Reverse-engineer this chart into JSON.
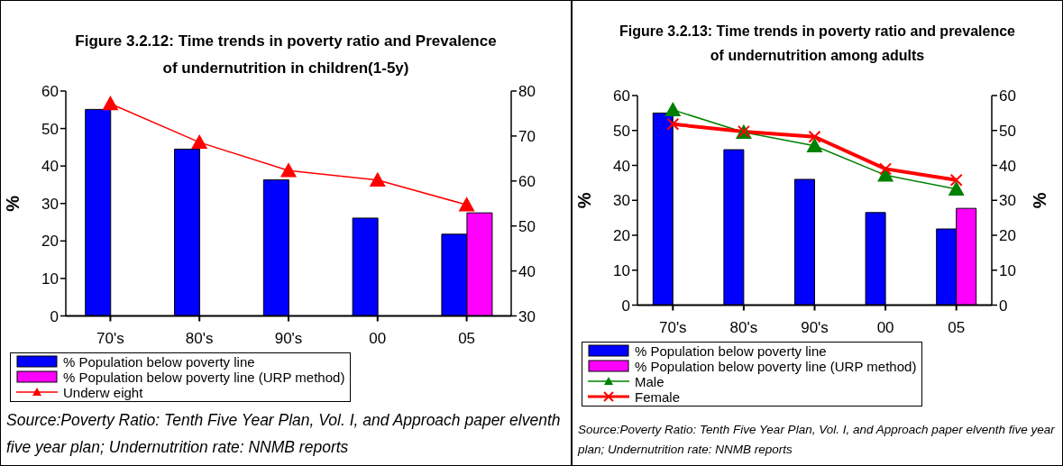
{
  "chart_data": [
    {
      "type": "bar",
      "title": "Figure 3.2.12: Time trends in poverty ratio and Prevalence of undernutrition in children(1-5y)",
      "ylabel": "%",
      "categories": [
        "70's",
        "80's",
        "90's",
        "00",
        "05"
      ],
      "ylim": [
        0,
        60
      ],
      "yticks": [
        0,
        10,
        20,
        30,
        40,
        50,
        60
      ],
      "y2lim": [
        30,
        80
      ],
      "y2ticks": [
        30,
        40,
        50,
        60,
        70,
        80
      ],
      "grid": false,
      "legend": "bottom",
      "annotations": [
        "Source:Poverty Ratio: Tenth Five Year Plan, Vol. I, and Approach paper elventh five year plan; Undernutrition rate: NNMB reports"
      ],
      "series": [
        {
          "name": "% Population below  poverty line",
          "color": "#0000ff",
          "values": [
            55.1,
            44.5,
            36.3,
            26.1,
            21.8
          ]
        },
        {
          "name": "% Population below  poverty line (URP method)",
          "color": "#ff00ff",
          "values": [
            null,
            null,
            null,
            null,
            27.5
          ]
        },
        {
          "name": "Underw eight",
          "type": "line",
          "axis": "y2",
          "color": "#ff0000",
          "marker": "triangle",
          "values": [
            77.2,
            68.6,
            62.3,
            60.2,
            54.7
          ]
        }
      ]
    },
    {
      "type": "bar",
      "title": "Figure 3.2.13: Time trends in poverty ratio and prevalence of undernutrition among adults",
      "ylabel": "%",
      "y2label": "%",
      "categories": [
        "70's",
        "80's",
        "90's",
        "00",
        "05"
      ],
      "ylim": [
        0,
        60
      ],
      "yticks": [
        0,
        10,
        20,
        30,
        40,
        50,
        60
      ],
      "y2lim": [
        0,
        60
      ],
      "y2ticks": [
        0,
        10,
        20,
        30,
        40,
        50,
        60
      ],
      "grid": false,
      "legend": "bottom",
      "annotations": [
        "Source:Poverty Ratio: Tenth Five Year Plan, Vol. I, and Approach paper elventh five year plan; Undernutrition rate: NNMB reports"
      ],
      "series": [
        {
          "name": "% Population below  poverty line",
          "color": "#0000ff",
          "values": [
            55,
            44.5,
            36,
            26.5,
            21.8
          ]
        },
        {
          "name": "% Population below  poverty line (URP method)",
          "color": "#ff00ff",
          "values": [
            null,
            null,
            null,
            null,
            27.7
          ]
        },
        {
          "name": "Male",
          "type": "line",
          "axis": "y2",
          "color": "#008000",
          "marker": "triangle",
          "values": [
            55.9,
            49.5,
            45.6,
            37.2,
            33.2
          ]
        },
        {
          "name": "Female",
          "type": "line",
          "axis": "y2",
          "color": "#ff0000",
          "marker": "cross",
          "values": [
            51.8,
            49.7,
            48.2,
            39,
            35.8
          ]
        }
      ]
    }
  ]
}
